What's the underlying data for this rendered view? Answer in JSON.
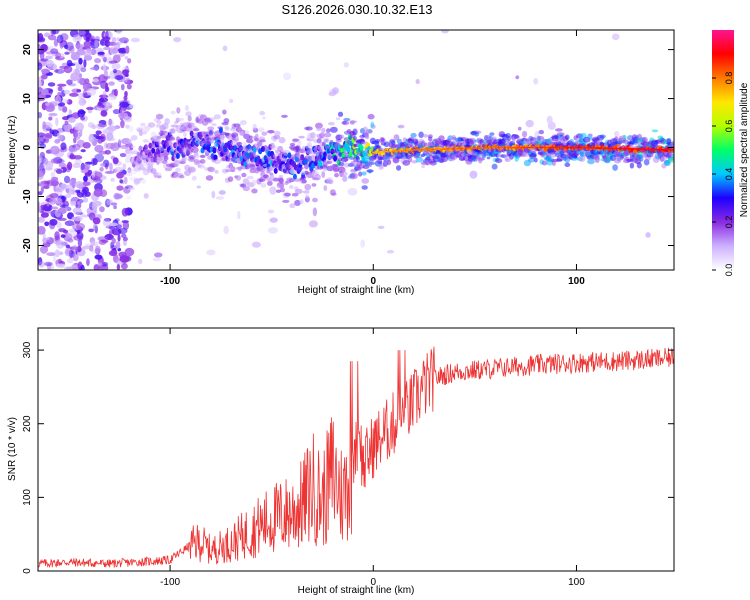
{
  "title": "S126.2026.030.10.32.E13",
  "chart_data": [
    {
      "type": "heatmap",
      "title": "S126.2026.030.10.32.E13",
      "xlabel": "Height of straight line (km)",
      "ylabel": "Frequency (Hz)",
      "xlim": [
        -165,
        148
      ],
      "ylim": [
        -25,
        24
      ],
      "xticks": [
        -100,
        0,
        100
      ],
      "xtick_labels": [
        "-100",
        "0",
        "100"
      ],
      "yticks": [
        -20,
        -10,
        0,
        10,
        20
      ],
      "ytick_labels": [
        "-20",
        "-10",
        "0",
        "10",
        "20"
      ],
      "colorbar": {
        "label": "Normalized spectral amplitude",
        "range": [
          0,
          1
        ],
        "ticks": [
          0.0,
          0.2,
          0.4,
          0.6,
          0.8
        ],
        "tick_labels": [
          "0.0",
          "0.2",
          "0.4",
          "0.6",
          "0.8"
        ],
        "colors": [
          "#ffffff",
          "#cdb0ff",
          "#8a2be2",
          "#1e00ff",
          "#00c8ff",
          "#00ff66",
          "#b4ff00",
          "#ffe600",
          "#ff7a00",
          "#ff0000",
          "#ff1493"
        ]
      },
      "ridge": {
        "x": [
          -165,
          -120,
          -100,
          -80,
          -60,
          -40,
          -30,
          -20,
          -10,
          0,
          20,
          60,
          100,
          148
        ],
        "freq": [
          0,
          -2,
          0,
          1,
          -2,
          -4,
          -2,
          -1,
          0,
          -1,
          -0.5,
          0,
          0,
          -0.5
        ],
        "peak_amplitude": [
          0.1,
          0.18,
          0.35,
          0.4,
          0.4,
          0.4,
          0.38,
          0.5,
          0.62,
          0.75,
          0.82,
          0.85,
          0.9,
          0.95
        ]
      }
    },
    {
      "type": "line",
      "xlabel": "Height of straight line (km)",
      "ylabel": "SNR (10 * v/v)",
      "xlim": [
        -165,
        148
      ],
      "ylim": [
        0,
        330
      ],
      "xticks": [
        -100,
        0,
        100
      ],
      "xtick_labels": [
        "-100",
        "0",
        "100"
      ],
      "yticks": [
        0,
        100,
        200,
        300
      ],
      "ytick_labels": [
        "0",
        "100",
        "200",
        "300"
      ],
      "color": "#ee3333",
      "series": [
        {
          "name": "SNR",
          "x": [
            -165,
            -150,
            -130,
            -110,
            -100,
            -95,
            -90,
            -85,
            -80,
            -70,
            -60,
            -50,
            -40,
            -35,
            -30,
            -25,
            -20,
            -15,
            -10,
            -7,
            -5,
            -2,
            0,
            5,
            10,
            15,
            20,
            25,
            30,
            40,
            60,
            80,
            100,
            120,
            140,
            148
          ],
          "values": [
            10,
            12,
            10,
            13,
            15,
            25,
            35,
            40,
            28,
            38,
            55,
            70,
            80,
            90,
            115,
            95,
            135,
            100,
            150,
            190,
            140,
            160,
            170,
            185,
            200,
            210,
            230,
            250,
            262,
            270,
            275,
            280,
            283,
            285,
            288,
            290
          ]
        }
      ]
    }
  ]
}
